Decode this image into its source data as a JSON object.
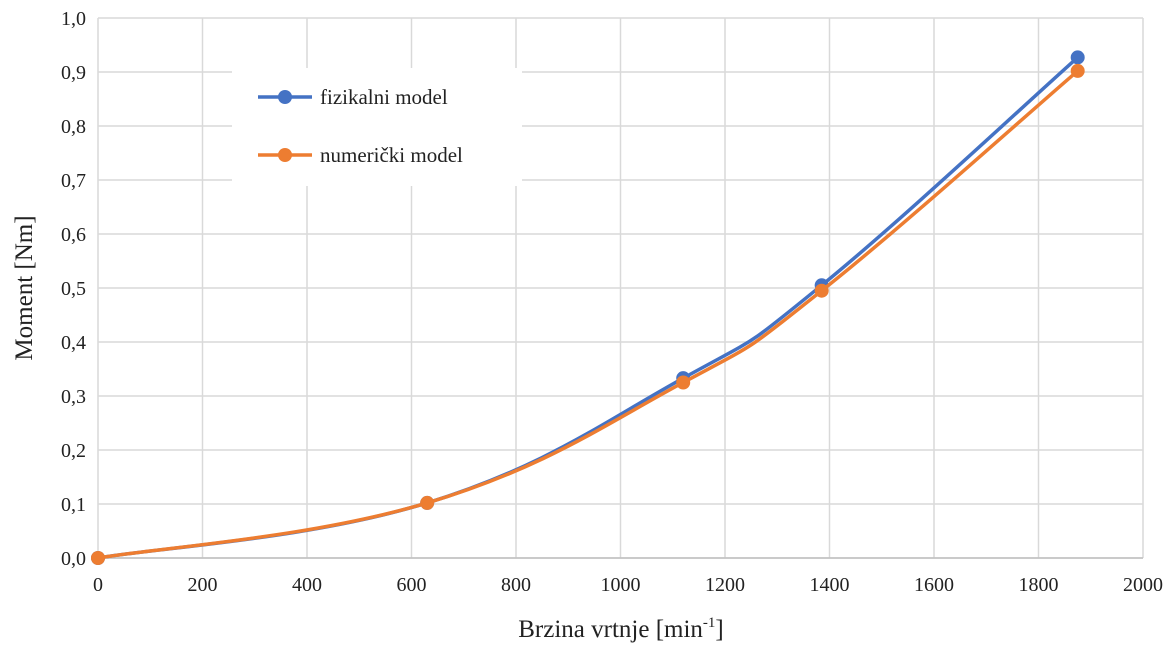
{
  "chart_data": {
    "type": "line",
    "xlabel": "Brzina vrtnje [min",
    "xlabel_sup": "-1",
    "xlabel_suffix": "]",
    "ylabel": "Moment [Nm]",
    "xlim": [
      0,
      2000
    ],
    "ylim": [
      0,
      1.0
    ],
    "x_ticks": [
      0,
      200,
      400,
      600,
      800,
      1000,
      1200,
      1400,
      1600,
      1800,
      2000
    ],
    "x_tick_labels": [
      "0",
      "200",
      "400",
      "600",
      "800",
      "1000",
      "1200",
      "1400",
      "1600",
      "1800",
      "2000"
    ],
    "y_ticks": [
      0,
      0.1,
      0.2,
      0.3,
      0.4,
      0.5,
      0.6,
      0.7,
      0.8,
      0.9,
      1.0
    ],
    "y_tick_labels": [
      "0,0",
      "0,1",
      "0,2",
      "0,3",
      "0,4",
      "0,5",
      "0,6",
      "0,7",
      "0,8",
      "0,9",
      "1,0"
    ],
    "grid": true,
    "legend_position": "top-left",
    "series": [
      {
        "name": "fizikalni model",
        "color": "#4472C4",
        "x": [
          0,
          630,
          1120,
          1385,
          1875
        ],
        "y": [
          0.0,
          0.102,
          0.333,
          0.505,
          0.927
        ]
      },
      {
        "name": "numerički model",
        "color": "#ED7D31",
        "x": [
          0,
          630,
          1120,
          1385,
          1875
        ],
        "y": [
          0.0,
          0.102,
          0.325,
          0.495,
          0.902
        ]
      }
    ]
  }
}
